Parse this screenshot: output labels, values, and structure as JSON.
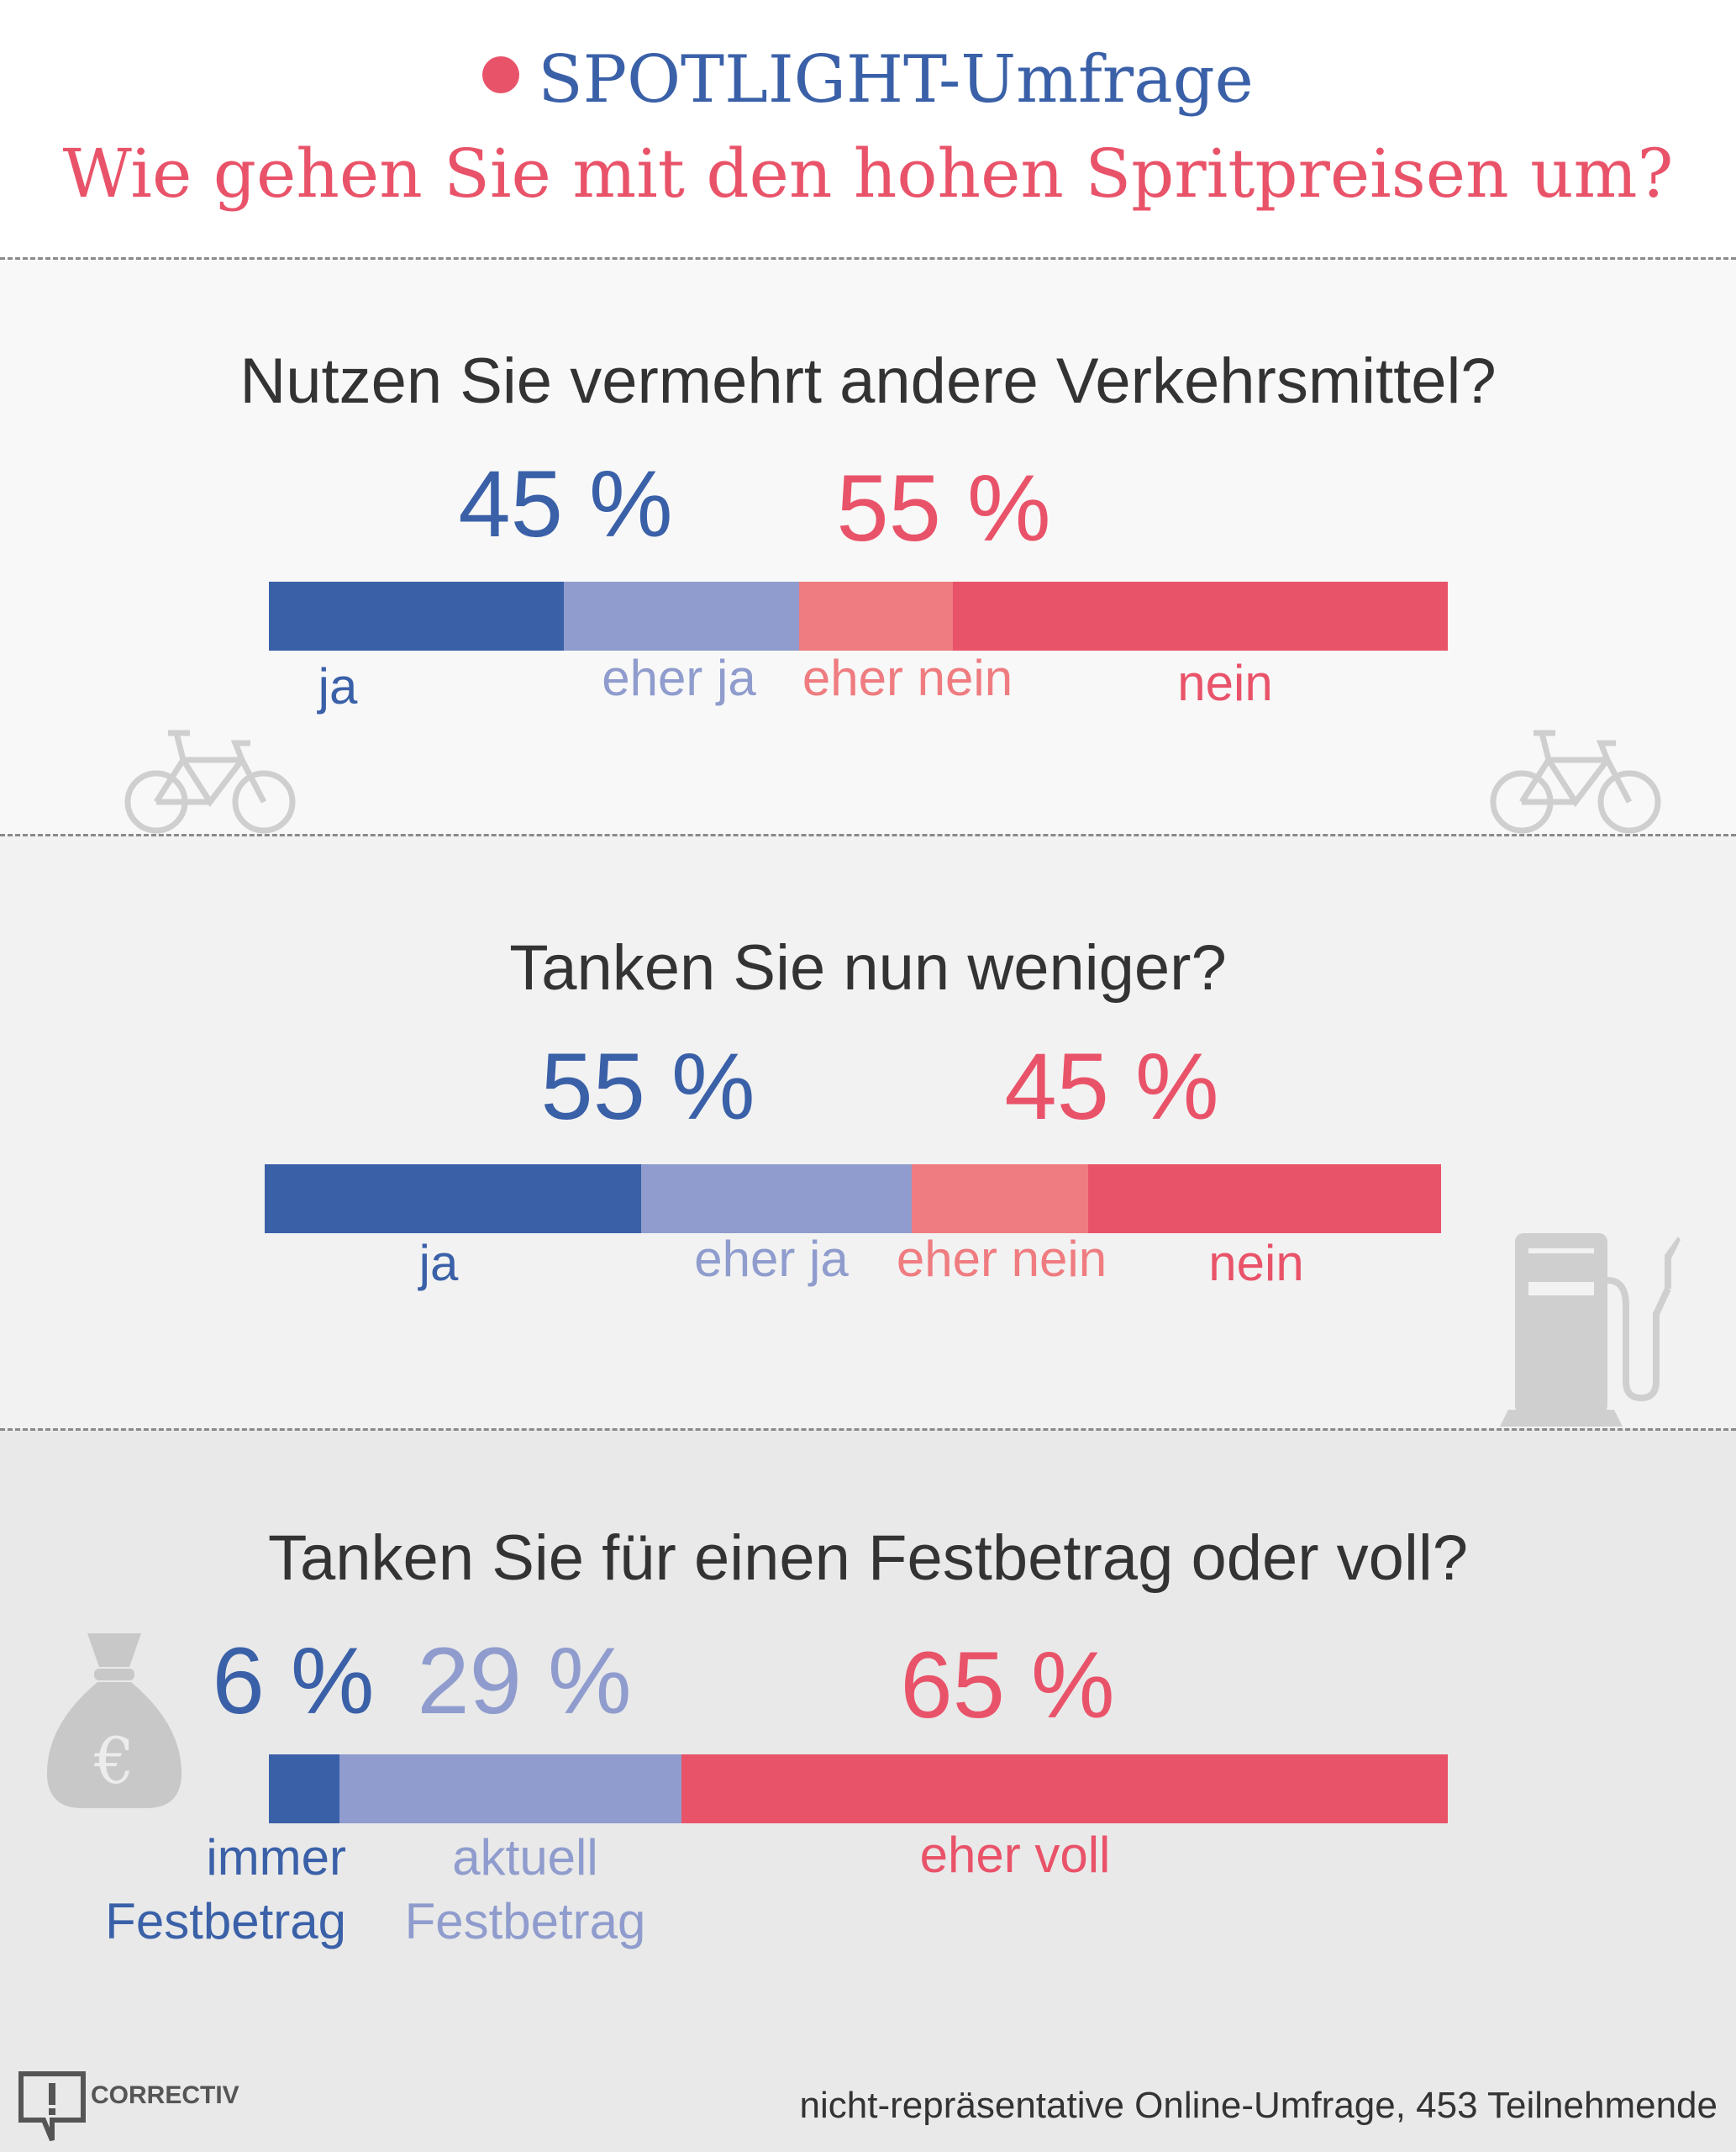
{
  "header": {
    "kicker": "SPOTLIGHT-Umfrage",
    "title": "Wie gehen Sie mit den hohen Spritpreisen um?"
  },
  "colors": {
    "ja": "#3a60a8",
    "eher_ja": "#8f9ccd",
    "eher_nein": "#ef7c80",
    "nein": "#e95369"
  },
  "chart_data": [
    {
      "type": "bar",
      "orientation": "horizontal-stacked",
      "title": "Nutzen Sie vermehrt andere Verkehrsmittel?",
      "categories": [
        "ja",
        "eher ja",
        "eher nein",
        "nein"
      ],
      "values": [
        25,
        20,
        13,
        42
      ],
      "totals": [
        {
          "label": "45 %",
          "value": 45
        },
        {
          "label": "55 %",
          "value": 55
        }
      ],
      "unit": "%",
      "icon": "bicycle-icon"
    },
    {
      "type": "bar",
      "orientation": "horizontal-stacked",
      "title": "Tanken Sie nun weniger?",
      "categories": [
        "ja",
        "eher ja",
        "eher nein",
        "nein"
      ],
      "values": [
        32,
        23,
        15,
        30
      ],
      "totals": [
        {
          "label": "55 %",
          "value": 55
        },
        {
          "label": "45 %",
          "value": 45
        }
      ],
      "unit": "%",
      "icon": "fuel-pump-icon"
    },
    {
      "type": "bar",
      "orientation": "horizontal-stacked",
      "title": "Tanken Sie für einen Festbetrag oder voll?",
      "categories": [
        "immer Festbetrag",
        "aktuell Festbetrag",
        "eher voll"
      ],
      "category_lines": [
        [
          "immer",
          "Festbetrag"
        ],
        [
          "aktuell",
          "Festbetrag"
        ],
        [
          "eher voll"
        ]
      ],
      "values": [
        6,
        29,
        65
      ],
      "totals": [
        {
          "label": "6 %",
          "value": 6
        },
        {
          "label": "29 %",
          "value": 29
        },
        {
          "label": "65 %",
          "value": 65
        }
      ],
      "unit": "%",
      "icon": "money-bag-euro-icon"
    }
  ],
  "footer": {
    "logo": "CORRECTIV",
    "note": "nicht-repräsentative Online-Umfrage, 453 Teilnehmende"
  }
}
